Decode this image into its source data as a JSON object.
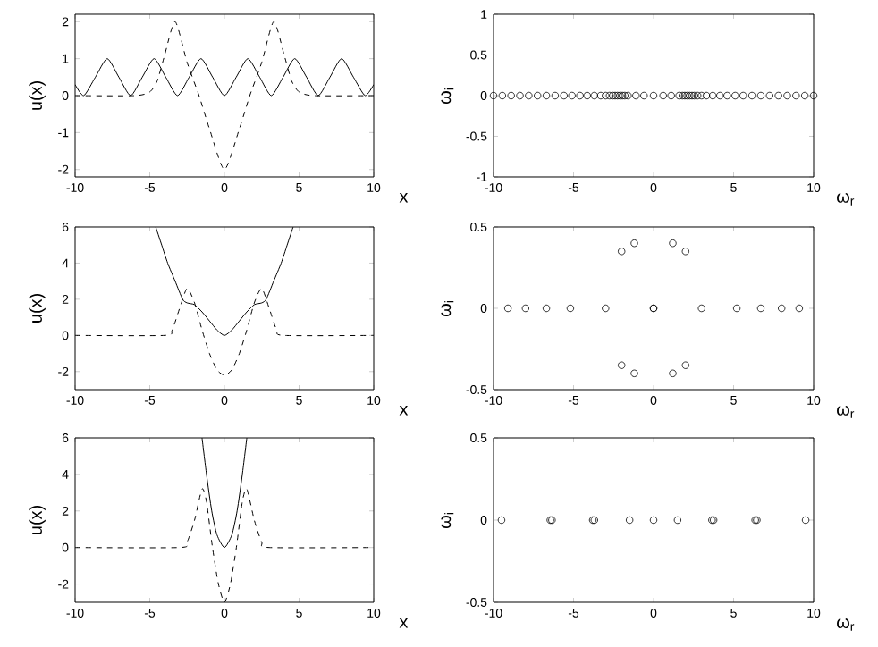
{
  "chart_data": [
    {
      "type": "line",
      "xlabel": "x",
      "ylabel": "u(x)",
      "xlim": [
        -10,
        10
      ],
      "ylim": [
        -2.2,
        2.2
      ],
      "xticks": [
        -10,
        -5,
        0,
        5,
        10
      ],
      "yticks": [
        -2,
        -1,
        0,
        1,
        2
      ],
      "series": [
        {
          "color": "#000000",
          "line_style": "solid",
          "x": [
            -10,
            -9.42,
            -8.64,
            -7.85,
            -7.07,
            -6.28,
            -5.5,
            -4.71,
            -3.93,
            -3.14,
            -2.36,
            -1.57,
            -0.79,
            0,
            0.79,
            1.57,
            2.36,
            3.14,
            3.93,
            4.71,
            5.5,
            6.28,
            7.07,
            7.85,
            8.64,
            9.42,
            10
          ],
          "values": [
            0.3,
            0,
            0.5,
            1,
            0.5,
            0,
            0.5,
            1,
            0.5,
            0,
            0.5,
            1,
            0.5,
            0,
            0.5,
            1,
            0.5,
            0,
            0.5,
            1,
            0.5,
            0,
            0.5,
            1,
            0.5,
            0,
            0.3
          ]
        },
        {
          "color": "#000000",
          "line_style": "dashed",
          "x": [
            -10,
            -6,
            -5,
            -4.5,
            -4,
            -3.3,
            -2.5,
            -1.7,
            -1,
            0,
            1,
            1.7,
            2.5,
            3.3,
            4,
            4.5,
            5,
            6,
            10
          ],
          "values": [
            0,
            0,
            0.1,
            0.4,
            1.1,
            2,
            0.9,
            0,
            -0.9,
            -2,
            -0.9,
            0,
            0.9,
            2,
            1.1,
            0.4,
            0.1,
            0,
            0
          ]
        }
      ]
    },
    {
      "type": "scatter",
      "xlabel": "ω$_{r}$",
      "ylabel": "ω$_{i}$",
      "xlim": [
        -10,
        10
      ],
      "ylim": [
        -1,
        1
      ],
      "xticks": [
        -10,
        -5,
        0,
        5,
        10
      ],
      "yticks": [
        -1,
        -0.5,
        0,
        0.5,
        1
      ],
      "marker": "circle",
      "color": "#000000",
      "x": [
        -10,
        -9.45,
        -8.9,
        -8.35,
        -7.8,
        -7.25,
        -6.7,
        -6.15,
        -5.6,
        -5.1,
        -4.6,
        -4.15,
        -3.7,
        -3.3,
        -3.0,
        -2.75,
        -2.55,
        -2.4,
        -2.25,
        -2.1,
        -1.95,
        -1.8,
        -1.6,
        -1.1,
        -0.6,
        0,
        0.6,
        1.1,
        1.6,
        1.8,
        1.95,
        2.1,
        2.25,
        2.4,
        2.55,
        2.75,
        3.0,
        3.3,
        3.7,
        4.15,
        4.6,
        5.1,
        5.6,
        6.15,
        6.7,
        7.25,
        7.8,
        8.35,
        8.9,
        9.45,
        10
      ],
      "values": [
        0,
        0,
        0,
        0,
        0,
        0,
        0,
        0,
        0,
        0,
        0,
        0,
        0,
        0,
        0,
        0,
        0,
        0,
        0,
        0,
        0,
        0,
        0,
        0,
        0,
        0,
        0,
        0,
        0,
        0,
        0,
        0,
        0,
        0,
        0,
        0,
        0,
        0,
        0,
        0,
        0,
        0,
        0,
        0,
        0,
        0,
        0,
        0,
        0,
        0,
        0
      ]
    },
    {
      "type": "line",
      "xlabel": "x",
      "ylabel": "u(x)",
      "xlim": [
        -10,
        10
      ],
      "ylim": [
        -3,
        6
      ],
      "xticks": [
        -10,
        -5,
        0,
        5,
        10
      ],
      "yticks": [
        -2,
        0,
        2,
        4,
        6
      ],
      "series": [
        {
          "color": "#000000",
          "line_style": "solid",
          "x": [
            -4.6,
            -4.2,
            -3.8,
            -3.3,
            -2.8,
            -2.5,
            -2,
            -1.5,
            -1,
            -0.5,
            0,
            0.5,
            1,
            1.5,
            2,
            2.5,
            2.8,
            3.3,
            3.8,
            4.2,
            4.6
          ],
          "values": [
            6,
            5,
            4,
            3,
            2,
            1.8,
            1.7,
            1.3,
            0.8,
            0.3,
            0,
            0.3,
            0.8,
            1.3,
            1.7,
            1.8,
            2,
            3,
            4,
            5,
            6
          ]
        },
        {
          "color": "#000000",
          "line_style": "dashed",
          "x": [
            -10,
            -4,
            -3.5,
            -3,
            -2.5,
            -2,
            -1.5,
            -1,
            -0.5,
            0,
            0.5,
            1,
            1.5,
            2,
            2.5,
            3,
            3.5,
            4,
            10
          ],
          "values": [
            0,
            0,
            0.3,
            1.5,
            2.6,
            1.8,
            0.3,
            -1,
            -1.9,
            -2.2,
            -1.9,
            -1,
            0.3,
            1.8,
            2.6,
            1.5,
            0.3,
            0,
            0
          ]
        }
      ]
    },
    {
      "type": "scatter",
      "xlabel": "ω$_{r}$",
      "ylabel": "ω$_{i}$",
      "xlim": [
        -10,
        10
      ],
      "ylim": [
        -0.5,
        0.5
      ],
      "xticks": [
        -10,
        -5,
        0,
        5,
        10
      ],
      "yticks": [
        -0.5,
        0,
        0.5
      ],
      "marker": "circle",
      "color": "#000000",
      "x": [
        -9.1,
        -8.0,
        -6.7,
        -5.2,
        -3.0,
        0,
        0,
        3.0,
        5.2,
        6.7,
        8.0,
        9.1,
        -2.0,
        -1.2,
        1.2,
        2.0,
        -2.0,
        -1.2,
        1.2,
        2.0
      ],
      "values": [
        0,
        0,
        0,
        0,
        0,
        0,
        0,
        0,
        0,
        0,
        0,
        0,
        0.35,
        0.4,
        0.4,
        0.35,
        -0.35,
        -0.4,
        -0.4,
        -0.35
      ]
    },
    {
      "type": "line",
      "xlabel": "x",
      "ylabel": "u(x)",
      "xlim": [
        -10,
        10
      ],
      "ylim": [
        -3,
        6
      ],
      "xticks": [
        -10,
        -5,
        0,
        5,
        10
      ],
      "yticks": [
        -2,
        0,
        2,
        4,
        6
      ],
      "series": [
        {
          "color": "#000000",
          "line_style": "solid",
          "x": [
            -1.5,
            -1.2,
            -0.85,
            -0.5,
            0,
            0.5,
            0.85,
            1.2,
            1.5
          ],
          "values": [
            6,
            4,
            2,
            0.7,
            0,
            0.7,
            2,
            4,
            6
          ]
        },
        {
          "color": "#000000",
          "line_style": "dashed",
          "x": [
            -10,
            -3,
            -2.5,
            -2,
            -1.5,
            -1.2,
            -0.8,
            -0.4,
            0,
            0.4,
            0.8,
            1.2,
            1.5,
            2,
            2.5,
            3,
            10
          ],
          "values": [
            0,
            0,
            0.3,
            1.5,
            3.2,
            2.5,
            0,
            -2,
            -3,
            -2,
            0,
            2.5,
            3.2,
            1.5,
            0.3,
            0,
            0
          ]
        }
      ]
    },
    {
      "type": "scatter",
      "xlabel": "ω$_{r}$",
      "ylabel": "ω$_{i}$",
      "xlim": [
        -10,
        10
      ],
      "ylim": [
        -0.5,
        0.5
      ],
      "xticks": [
        -10,
        -5,
        0,
        5,
        10
      ],
      "yticks": [
        -0.5,
        0,
        0.5
      ],
      "marker": "circle",
      "color": "#000000",
      "x": [
        -9.5,
        -6.45,
        -6.35,
        -3.8,
        -3.7,
        -1.5,
        0,
        1.5,
        3.65,
        3.75,
        6.35,
        6.45,
        9.5
      ],
      "values": [
        0,
        0,
        0,
        0,
        0,
        0,
        0,
        0,
        0,
        0,
        0,
        0,
        0
      ]
    }
  ]
}
